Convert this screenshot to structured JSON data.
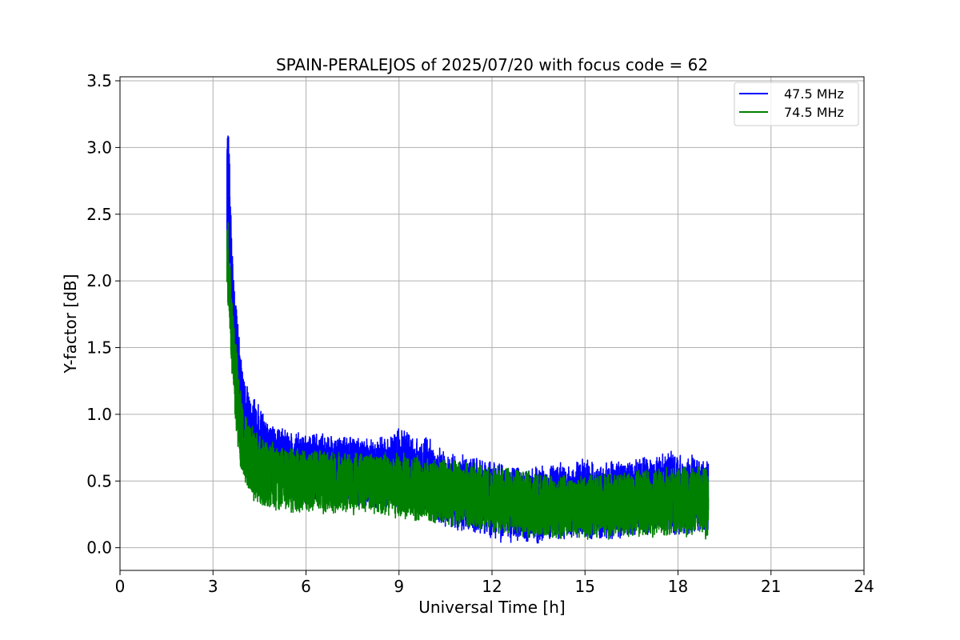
{
  "chart_data": {
    "type": "line",
    "title": "SPAIN-PERALEJOS of 2025/07/20 with focus code = 62",
    "xlabel": "Universal Time [h]",
    "ylabel": "Y-factor [dB]",
    "xlim": [
      0,
      24
    ],
    "ylim": [
      -0.17,
      3.53
    ],
    "xticks": [
      0,
      3,
      6,
      9,
      12,
      15,
      18,
      21,
      24
    ],
    "xtick_labels": [
      "0",
      "3",
      "6",
      "9",
      "12",
      "15",
      "18",
      "21",
      "24"
    ],
    "yticks": [
      0.0,
      0.5,
      1.0,
      1.5,
      2.0,
      2.5,
      3.0,
      3.5
    ],
    "ytick_labels": [
      "0.0",
      "0.5",
      "1.0",
      "1.5",
      "2.0",
      "2.5",
      "3.0",
      "3.5"
    ],
    "grid": true,
    "legend_position": "top-right",
    "series": [
      {
        "name": "47.5 MHz",
        "color": "#0000ff",
        "x": [
          3.45,
          3.47,
          3.5,
          3.55,
          3.6,
          3.7,
          3.8,
          3.9,
          4.0,
          4.2,
          4.4,
          4.7,
          5.0,
          5.5,
          6.0,
          6.5,
          7.0,
          7.5,
          8.0,
          8.5,
          9.0,
          9.5,
          10.0,
          10.5,
          11.0,
          11.5,
          12.0,
          12.5,
          13.0,
          13.5,
          14.0,
          14.5,
          15.0,
          15.5,
          16.0,
          16.5,
          17.0,
          17.5,
          18.0,
          18.5,
          18.98
        ],
        "y_max": [
          2.95,
          3.36,
          3.2,
          2.75,
          2.45,
          2.0,
          1.7,
          1.45,
          1.32,
          1.2,
          1.12,
          1.0,
          0.92,
          0.88,
          0.86,
          0.87,
          0.85,
          0.85,
          0.83,
          0.84,
          0.9,
          0.85,
          0.82,
          0.72,
          0.7,
          0.67,
          0.66,
          0.63,
          0.6,
          0.62,
          0.65,
          0.62,
          0.68,
          0.63,
          0.66,
          0.68,
          0.7,
          0.73,
          0.72,
          0.7,
          0.68
        ],
        "y_min": [
          2.1,
          2.0,
          1.9,
          1.65,
          1.45,
          1.1,
          0.85,
          0.68,
          0.55,
          0.48,
          0.45,
          0.4,
          0.38,
          0.36,
          0.3,
          0.35,
          0.33,
          0.32,
          0.3,
          0.3,
          0.28,
          0.26,
          0.22,
          0.15,
          0.12,
          0.1,
          0.05,
          0.02,
          0.04,
          0.03,
          0.06,
          0.05,
          0.06,
          0.06,
          0.07,
          0.08,
          0.08,
          0.09,
          0.09,
          0.1,
          0.12
        ]
      },
      {
        "name": "74.5 MHz",
        "color": "#008000",
        "x": [
          3.45,
          3.47,
          3.5,
          3.55,
          3.6,
          3.7,
          3.8,
          3.9,
          4.0,
          4.2,
          4.4,
          4.7,
          5.0,
          5.5,
          6.0,
          6.5,
          7.0,
          7.5,
          8.0,
          8.5,
          9.0,
          9.5,
          10.0,
          10.5,
          11.0,
          11.5,
          12.0,
          12.5,
          13.0,
          13.5,
          14.0,
          14.5,
          15.0,
          15.5,
          16.0,
          16.5,
          17.0,
          17.5,
          18.0,
          18.5,
          18.98
        ],
        "y_max": [
          2.4,
          2.56,
          2.35,
          2.15,
          1.95,
          1.65,
          1.4,
          1.2,
          1.08,
          0.95,
          0.88,
          0.82,
          0.78,
          0.75,
          0.74,
          0.74,
          0.73,
          0.72,
          0.72,
          0.72,
          0.72,
          0.7,
          0.68,
          0.66,
          0.65,
          0.64,
          0.62,
          0.6,
          0.58,
          0.56,
          0.55,
          0.56,
          0.56,
          0.56,
          0.57,
          0.58,
          0.6,
          0.6,
          0.62,
          0.62,
          0.62
        ],
        "y_min": [
          1.9,
          1.85,
          1.75,
          1.55,
          1.3,
          0.95,
          0.72,
          0.58,
          0.45,
          0.38,
          0.33,
          0.28,
          0.27,
          0.26,
          0.26,
          0.25,
          0.25,
          0.24,
          0.24,
          0.23,
          0.22,
          0.2,
          0.18,
          0.16,
          0.14,
          0.12,
          0.11,
          0.1,
          0.08,
          0.06,
          0.05,
          0.06,
          0.06,
          0.06,
          0.06,
          0.07,
          0.07,
          0.08,
          0.08,
          0.08,
          0.06
        ]
      }
    ]
  }
}
